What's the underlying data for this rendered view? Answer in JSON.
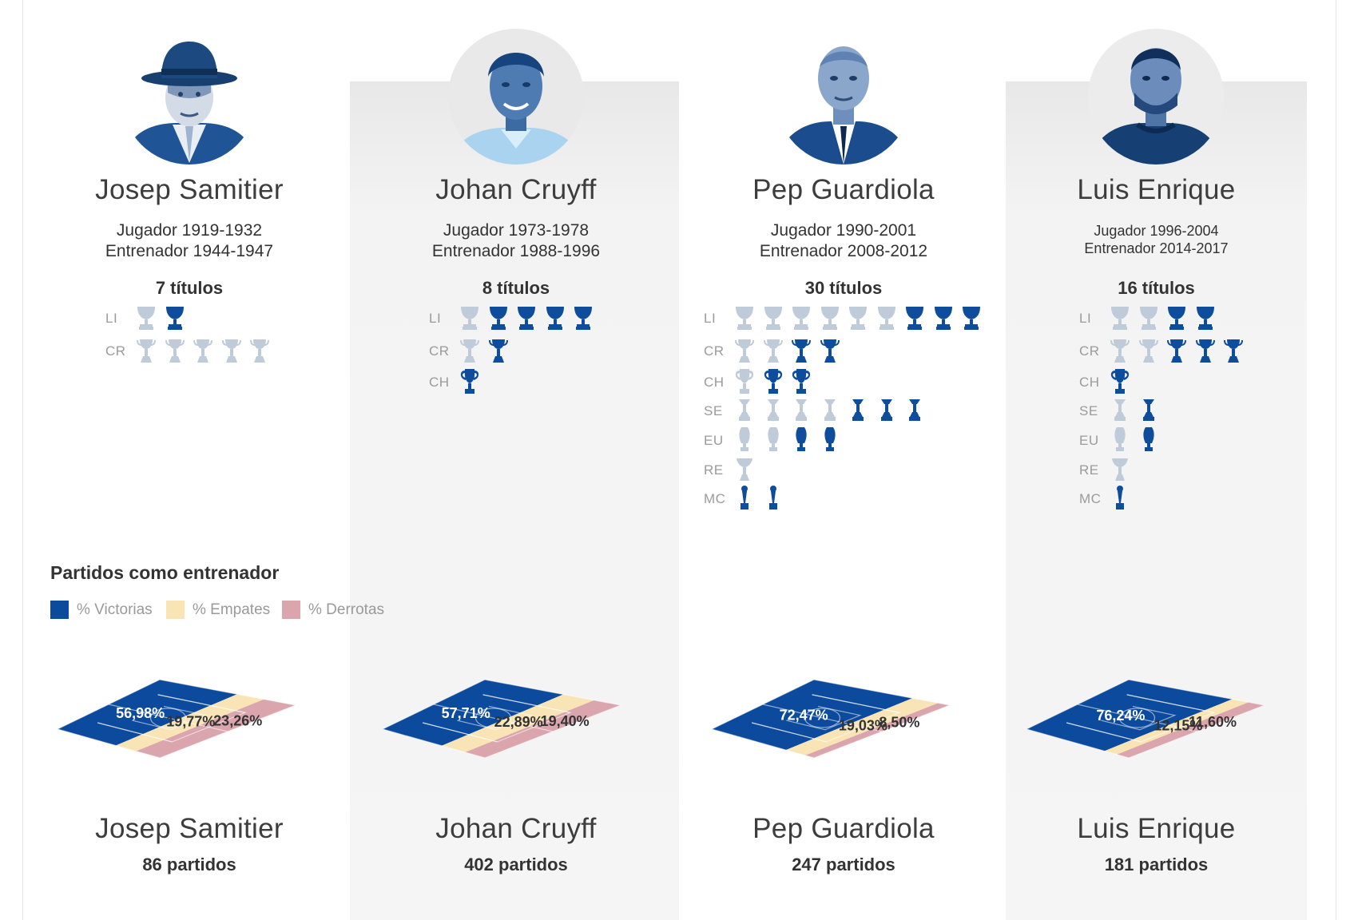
{
  "colors": {
    "victorias": "#0b4a9c",
    "empates": "#f8e4b4",
    "derrotas": "#dba5ad",
    "trophy_won": "#0e4d9b",
    "trophy_other": "#bfcbd8"
  },
  "chart_title": "Partidos como entrenador",
  "legend": {
    "victorias": "% Victorias",
    "empates": "% Empates",
    "derrotas": "% Derrotas"
  },
  "chart_data": {
    "type": "stacked-bar",
    "title": "Partidos como entrenador",
    "categories": [
      "Josep Samitier",
      "Johan Cruyff",
      "Pep Guardiola",
      "Luis Enrique"
    ],
    "series": [
      {
        "name": "% Victorias",
        "values": [
          56.98,
          57.71,
          72.47,
          76.24
        ],
        "labels": [
          "56,98%",
          "57,71%",
          "72,47%",
          "76,24%"
        ]
      },
      {
        "name": "% Empates",
        "values": [
          19.77,
          22.89,
          19.03,
          12.15
        ],
        "labels": [
          "19,77%",
          "22,89%",
          "19,03%",
          "12,15%"
        ]
      },
      {
        "name": "% Derrotas",
        "values": [
          23.26,
          19.4,
          8.5,
          11.6
        ],
        "labels": [
          "23,26%",
          "19,40%",
          "8,50%",
          "11,60%"
        ]
      }
    ],
    "partidos": [
      86,
      402,
      247,
      181
    ]
  },
  "people": [
    {
      "name": "Josep Samitier",
      "career": [
        "Jugador 1919-1932",
        "Entrenador 1944-1947"
      ],
      "titles": "7 títulos",
      "matches": "86 partidos",
      "icon": "hat-man-photo",
      "trophies": [
        {
          "label": "LI",
          "kind": "liga",
          "other": 1,
          "won": 1
        },
        {
          "label": "CR",
          "kind": "copa",
          "other": 5,
          "won": 0
        }
      ]
    },
    {
      "name": "Johan Cruyff",
      "career": [
        "Jugador 1973-1978",
        "Entrenador 1988-1996"
      ],
      "titles": "8 títulos",
      "matches": "402 partidos",
      "icon": "smiling-man-photo",
      "trophies": [
        {
          "label": "LI",
          "kind": "liga",
          "other": 1,
          "won": 4
        },
        {
          "label": "CR",
          "kind": "copa",
          "other": 1,
          "won": 1
        },
        {
          "label": "CH",
          "kind": "champions",
          "other": 0,
          "won": 1
        }
      ]
    },
    {
      "name": "Pep Guardiola",
      "career": [
        "Jugador 1990-2001",
        "Entrenador 2008-2012"
      ],
      "titles": "30 títulos",
      "matches": "247 partidos",
      "icon": "suited-man-photo",
      "trophies": [
        {
          "label": "LI",
          "kind": "liga",
          "other": 6,
          "won": 3
        },
        {
          "label": "CR",
          "kind": "copa",
          "other": 2,
          "won": 2
        },
        {
          "label": "CH",
          "kind": "champions",
          "other": 1,
          "won": 2
        },
        {
          "label": "SE",
          "kind": "supercopa",
          "other": 4,
          "won": 3
        },
        {
          "label": "EU",
          "kind": "uefa",
          "other": 2,
          "won": 2
        },
        {
          "label": "RE",
          "kind": "recopa",
          "other": 1,
          "won": 0
        },
        {
          "label": "MC",
          "kind": "mundial",
          "other": 0,
          "won": 2
        }
      ]
    },
    {
      "name": "Luis Enrique",
      "career": [
        "Jugador 1996-2004",
        "Entrenador 2014-2017"
      ],
      "titles": "16 títulos",
      "matches": "181 partidos",
      "icon": "bearded-man-photo",
      "trophies": [
        {
          "label": "LI",
          "kind": "liga",
          "other": 2,
          "won": 2
        },
        {
          "label": "CR",
          "kind": "copa",
          "other": 2,
          "won": 3
        },
        {
          "label": "CH",
          "kind": "champions",
          "other": 0,
          "won": 1
        },
        {
          "label": "SE",
          "kind": "supercopa",
          "other": 1,
          "won": 1
        },
        {
          "label": "EU",
          "kind": "uefa",
          "other": 1,
          "won": 1
        },
        {
          "label": "RE",
          "kind": "recopa",
          "other": 1,
          "won": 0
        },
        {
          "label": "MC",
          "kind": "mundial",
          "other": 0,
          "won": 1
        }
      ]
    }
  ]
}
